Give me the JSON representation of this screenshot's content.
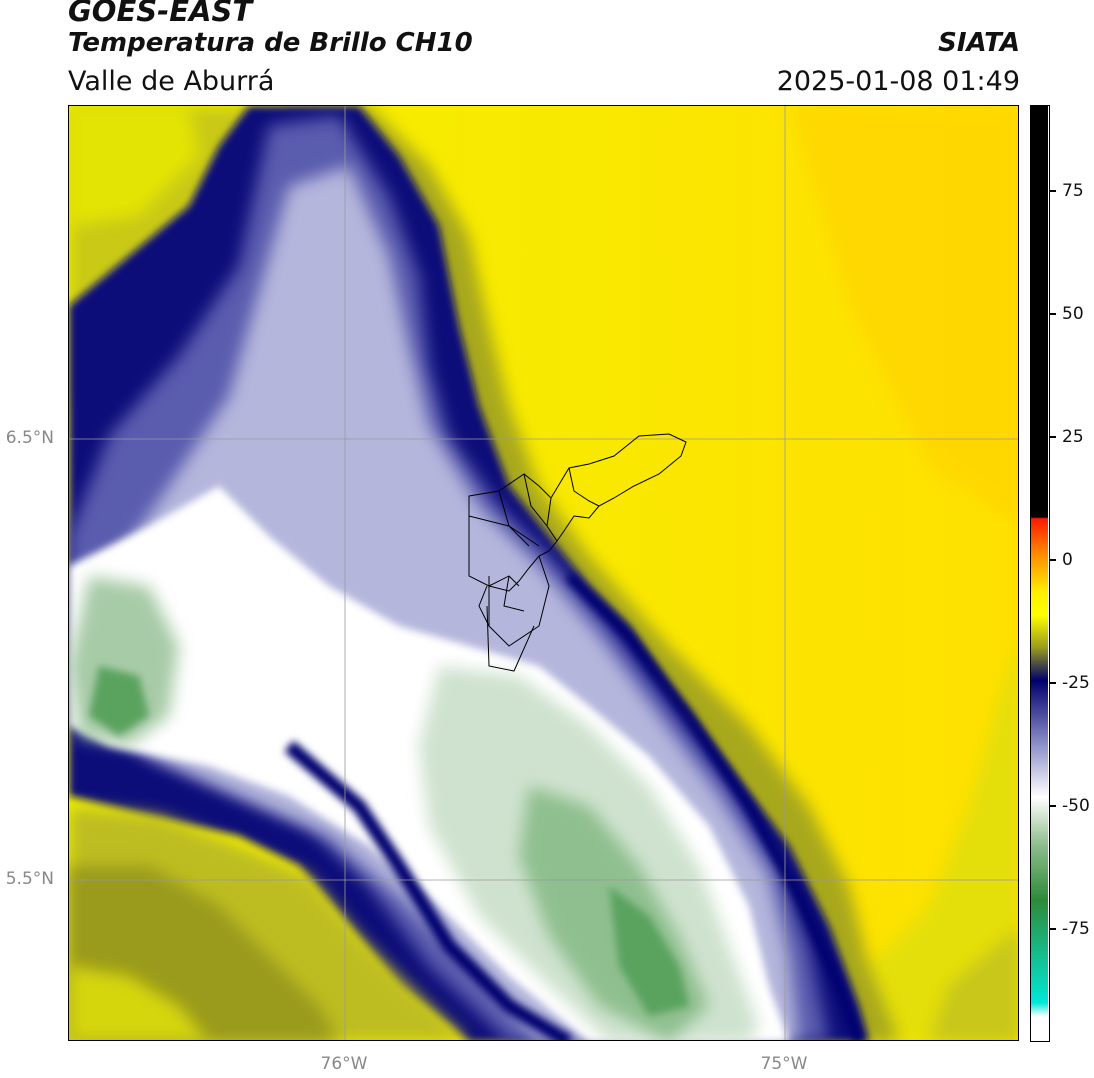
{
  "header": {
    "satellite": "GOES-EAST",
    "product": "Temperatura de Brillo CH10",
    "region": "Valle de Aburrá",
    "organization": "SIATA",
    "timestamp": "2025-01-08 01:49"
  },
  "axes": {
    "latitude_labels": [
      {
        "text": "6.5°N",
        "value": 6.5
      },
      {
        "text": "5.5°N",
        "value": 5.5
      }
    ],
    "longitude_labels": [
      {
        "text": "76°W",
        "value": -76.0
      },
      {
        "text": "75°W",
        "value": -75.0
      }
    ]
  },
  "colorbar": {
    "ticks": [
      {
        "text": "75",
        "value": 75
      },
      {
        "text": "50",
        "value": 50
      },
      {
        "text": "25",
        "value": 25
      },
      {
        "text": "0",
        "value": 0
      },
      {
        "text": "-25",
        "value": -25
      },
      {
        "text": "-50",
        "value": -50
      },
      {
        "text": "-75",
        "value": -75
      }
    ],
    "colors": {
      "black": "#000000",
      "red": "#ff2a00",
      "orange": "#ff8c00",
      "yellow": "#ffff00",
      "olive": "#9a9a1e",
      "navy": "#00006e",
      "lavender": "#b4b6dc",
      "white": "#ffffff",
      "green": "#2e8b3a",
      "turquoise": "#00e8d6"
    }
  }
}
